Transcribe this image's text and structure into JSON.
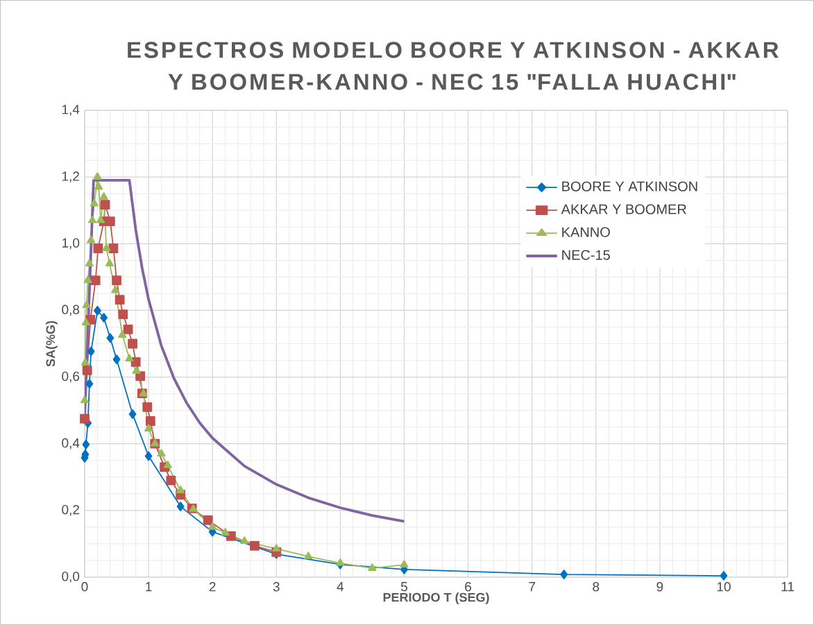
{
  "chart_data": {
    "type": "line",
    "title": "ESPECTROS MODELO BOORE Y ATKINSON - AKKAR Y BOOMER-KANNO - NEC 15 \"FALLA HUACHI\"",
    "xlabel": "PERIODO T (SEG)",
    "ylabel": "SA(%G)",
    "xlim": [
      0,
      11
    ],
    "ylim": [
      0,
      1.4
    ],
    "xticks": [
      0,
      1,
      2,
      3,
      4,
      5,
      6,
      7,
      8,
      9,
      10,
      11
    ],
    "yticks": [
      {
        "value": 0,
        "label": "0,0"
      },
      {
        "value": 0.2,
        "label": "0,2"
      },
      {
        "value": 0.4,
        "label": "0,4"
      },
      {
        "value": 0.6,
        "label": "0,6"
      },
      {
        "value": 0.8,
        "label": "0,8"
      },
      {
        "value": 1.0,
        "label": "1,0"
      },
      {
        "value": 1.2,
        "label": "1,2"
      },
      {
        "value": 1.4,
        "label": "1,4"
      }
    ],
    "grid": true,
    "legend": "top right",
    "series": [
      {
        "name": "BOORE Y ATKINSON",
        "color": "#0070c0",
        "marker": "diamond",
        "x": [
          0,
          0.01,
          0.02,
          0.05,
          0.075,
          0.1,
          0.2,
          0.3,
          0.4,
          0.5,
          0.75,
          1,
          1.5,
          2,
          3,
          4,
          5,
          7.5,
          10
        ],
        "values": [
          0.358,
          0.368,
          0.398,
          0.462,
          0.58,
          0.677,
          0.799,
          0.778,
          0.717,
          0.653,
          0.489,
          0.363,
          0.212,
          0.136,
          0.069,
          0.038,
          0.023,
          0.008,
          0.004
        ]
      },
      {
        "name": "AKKAR Y BOOMER",
        "color": "#c0504d",
        "marker": "square",
        "x": [
          0,
          0.04,
          0.09,
          0.17,
          0.21,
          0.3,
          0.32,
          0.4,
          0.45,
          0.5,
          0.55,
          0.6,
          0.68,
          0.75,
          0.8,
          0.87,
          0.9,
          0.98,
          1.03,
          1.1,
          1.25,
          1.35,
          1.5,
          1.68,
          1.93,
          2.29,
          2.66,
          3.0
        ],
        "values": [
          0.475,
          0.62,
          0.772,
          0.89,
          0.986,
          1.067,
          1.117,
          1.067,
          0.986,
          0.89,
          0.832,
          0.788,
          0.743,
          0.7,
          0.645,
          0.603,
          0.551,
          0.51,
          0.468,
          0.4,
          0.33,
          0.29,
          0.247,
          0.206,
          0.171,
          0.123,
          0.094,
          0.075
        ]
      },
      {
        "name": "KANNO",
        "color": "#9bbb59",
        "marker": "triangle",
        "x": [
          0,
          0.01,
          0.02,
          0.03,
          0.05,
          0.075,
          0.1,
          0.12,
          0.15,
          0.2,
          0.22,
          0.25,
          0.3,
          0.34,
          0.39,
          0.48,
          0.59,
          0.7,
          0.81,
          0.92,
          1.0,
          1.1,
          1.2,
          1.3,
          1.5,
          1.7,
          2.0,
          2.2,
          2.5,
          3.0,
          3.5,
          4.0,
          4.5,
          5.0
        ],
        "values": [
          0.53,
          0.643,
          0.763,
          0.815,
          0.89,
          0.94,
          1.01,
          1.07,
          1.12,
          1.2,
          1.17,
          1.07,
          1.14,
          0.986,
          0.94,
          0.86,
          0.726,
          0.655,
          0.618,
          0.55,
          0.445,
          0.4,
          0.37,
          0.335,
          0.26,
          0.204,
          0.15,
          0.133,
          0.108,
          0.085,
          0.062,
          0.042,
          0.027,
          0.037
        ]
      },
      {
        "name": "NEC-15",
        "color": "#8064a2",
        "marker": "none",
        "x": [
          0,
          0.14,
          0.7,
          0.8,
          0.9,
          1.0,
          1.2,
          1.4,
          1.6,
          1.8,
          2.0,
          2.5,
          3.0,
          3.5,
          4.0,
          4.5,
          5.0
        ],
        "values": [
          0.479,
          1.19,
          1.19,
          1.041,
          0.926,
          0.833,
          0.694,
          0.595,
          0.521,
          0.463,
          0.417,
          0.333,
          0.278,
          0.238,
          0.208,
          0.185,
          0.167
        ]
      }
    ]
  }
}
